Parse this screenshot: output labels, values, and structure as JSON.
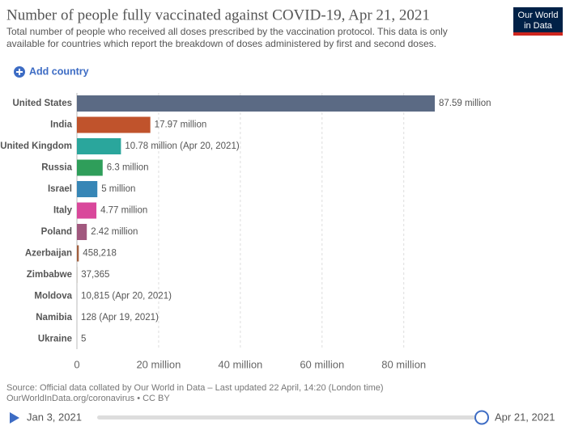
{
  "logo": [
    "Our World",
    "in Data"
  ],
  "controls": {
    "add_country": "Add country",
    "timeline_start": "Jan 3, 2021",
    "timeline_end": "Apr 21, 2021"
  },
  "chart_data": {
    "type": "bar",
    "orientation": "horizontal",
    "title": "Number of people fully vaccinated against COVID-19, Apr 21, 2021",
    "subtitle": [
      "Total number of people who received all doses prescribed by the vaccination protocol. This data is only",
      "available for countries which report the breakdown of doses administered by first and second doses."
    ],
    "source": [
      "Source: Official data collated by Our World in Data – Last updated 22 April, 14:20 (London time)",
      "OurWorldInData.org/coronavirus • CC BY"
    ],
    "categories": [
      "United States",
      "India",
      "United Kingdom",
      "Russia",
      "Israel",
      "Italy",
      "Poland",
      "Azerbaijan",
      "Zimbabwe",
      "Moldova",
      "Namibia",
      "Ukraine"
    ],
    "values": [
      87590000,
      17970000,
      10780000,
      6300000,
      5000000,
      4770000,
      2420000,
      458218,
      37365,
      10815,
      128,
      5
    ],
    "value_labels": [
      "87.59 million",
      "17.97 million",
      "10.78 million (Apr 20, 2021)",
      "6.3 million",
      "5 million",
      "4.77 million",
      "2.42 million",
      "458,218",
      "37,365",
      "10,815 (Apr 20, 2021)",
      "128 (Apr 19, 2021)",
      "5"
    ],
    "colors": [
      "#5b6a84",
      "#c0532c",
      "#2aa69c",
      "#2f9e5a",
      "#3786b6",
      "#d9489b",
      "#a1587e",
      "#a2603f",
      "#8c7a5b",
      "#7a8fa8",
      "#9b8f6a",
      "#6e7f8f"
    ],
    "xlim": [
      0,
      87590000
    ],
    "xticks": [
      0,
      {
        "value": 20000000,
        "label": "20 million"
      },
      {
        "value": 40000000,
        "label": "40 million"
      },
      {
        "value": 60000000,
        "label": "60 million"
      },
      {
        "value": 80000000,
        "label": "80 million"
      }
    ],
    "grid": true
  }
}
